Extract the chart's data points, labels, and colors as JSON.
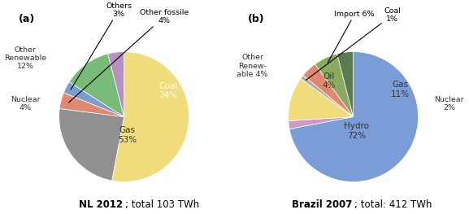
{
  "nl": {
    "values": [
      53,
      24,
      4,
      3,
      12,
      4
    ],
    "colors": [
      "#f0dc7a",
      "#909090",
      "#e08870",
      "#7a9dcc",
      "#78bb78",
      "#b890c0"
    ],
    "startangle": 90,
    "title_bold": "NL 2012",
    "title_rest": "; total 103 TWh"
  },
  "br": {
    "values": [
      72,
      2,
      11,
      1,
      4,
      6,
      4
    ],
    "colors": [
      "#7a9dd8",
      "#cc99cc",
      "#f0dc7a",
      "#aaaaaa",
      "#e08870",
      "#8aaa60",
      "#5a7a50"
    ],
    "startangle": 90,
    "title_bold": "Brazil 2007",
    "title_rest": "; total: 412 TWh"
  }
}
